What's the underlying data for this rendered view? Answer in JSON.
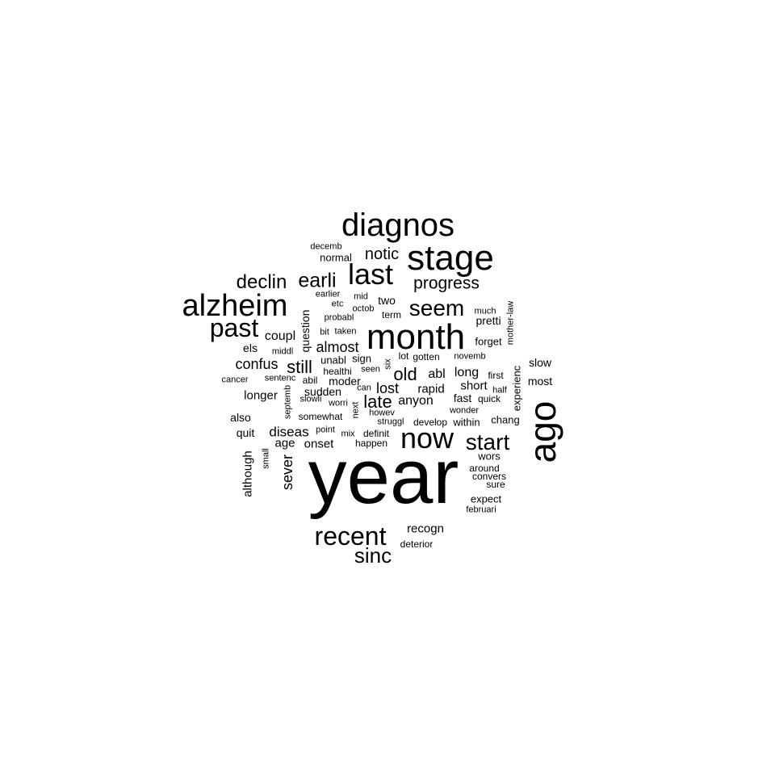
{
  "words": [
    "year",
    "ago",
    "month",
    "stage",
    "diagnos",
    "alzheim",
    "now",
    "last",
    "recent",
    "past",
    "start",
    "seem",
    "sinc",
    "earli",
    "declin",
    "progress",
    "still",
    "late",
    "old",
    "notic",
    "confus",
    "lost",
    "almost",
    "sever",
    "recogn",
    "diseas",
    "anyon",
    "long",
    "rapid",
    "abl",
    "coupl",
    "question",
    "longer",
    "although",
    "onset",
    "age",
    "sudden",
    "fast",
    "short",
    "els",
    "quit",
    "also",
    "moder",
    "two",
    "slow",
    "most",
    "pretti",
    "forget",
    "chang",
    "expect",
    "wors",
    "around",
    "convers",
    "sure",
    "februari",
    "deterior",
    "develop",
    "within",
    "wonder",
    "experienc",
    "half",
    "quick",
    "first",
    "novemb",
    "gotten",
    "lot",
    "six",
    "sign",
    "unabl",
    "healthi",
    "seen",
    "can",
    "worri",
    "slowli",
    "somewhat",
    "point",
    "mix",
    "definit",
    "happen",
    "struggl",
    "howev",
    "next",
    "septemb",
    "sentenc",
    "abil",
    "cancer",
    "middl",
    "bit",
    "taken",
    "probabl",
    "octob",
    "etc",
    "mid",
    "term",
    "earlier",
    "normal",
    "decemb",
    "much",
    "mother-law",
    "small"
  ]
}
